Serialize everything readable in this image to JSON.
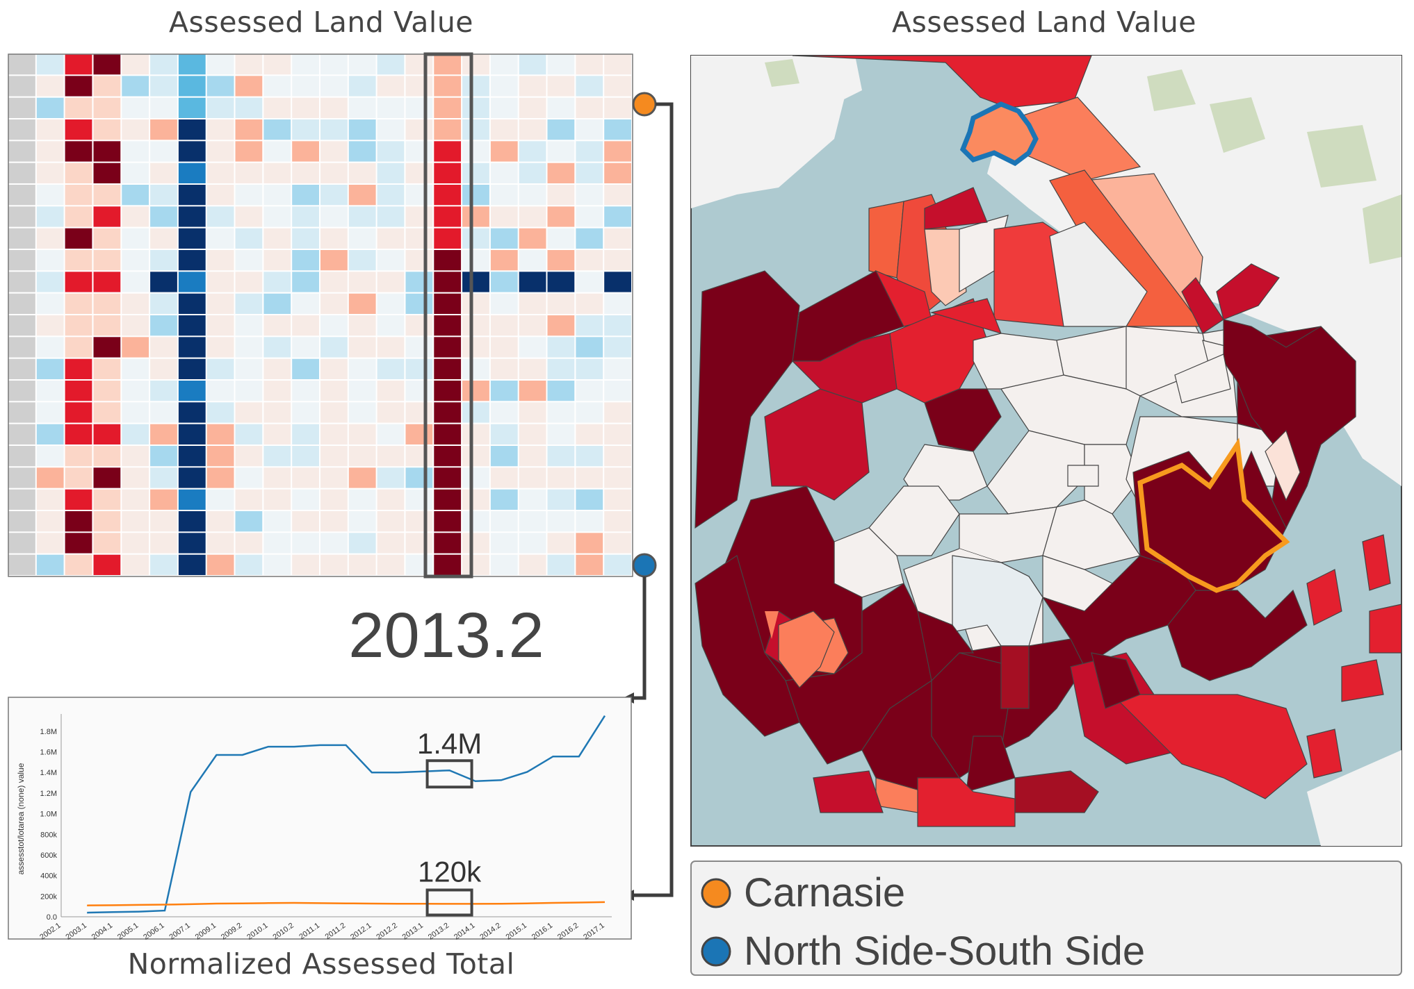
{
  "titles": {
    "heatmap": "Assessed Land Value",
    "map": "Assessed Land Value",
    "line_chart": "Normalized Assessed Total"
  },
  "selected_period": "2013.2",
  "annotations": {
    "north_value": "1.4M",
    "carnasie_value": "120k"
  },
  "legend": {
    "items": [
      {
        "label": "Carnasie",
        "color": "#f58a1f"
      },
      {
        "label": "North Side-South Side",
        "color": "#1b75b5"
      }
    ]
  },
  "colors": {
    "connector": "#3d3d3d",
    "highlight_box": "#555555",
    "north_line": "#1f78b4",
    "carnasie_line": "#ff7f0e",
    "water": "#aecad0",
    "land": "#f2f2f2",
    "park": "#cfdcbf"
  },
  "chart_data": [
    {
      "type": "heatmap",
      "title": "Assessed Land Value",
      "rows": 24,
      "columns": 22,
      "highlighted_column_index": 15,
      "color_scale": "diverging blue-white-red"
    },
    {
      "type": "line",
      "title": "Normalized Assessed Total",
      "ylabel": "assesstot/lotarea (none) value",
      "xlabel": "",
      "x": [
        "2002.1",
        "2003.1",
        "2004.1",
        "2005.1",
        "2006.1",
        "2007.1",
        "2009.1",
        "2009.2",
        "2010.1",
        "2010.2",
        "2011.1",
        "2011.2",
        "2012.1",
        "2012.2",
        "2013.1",
        "2013.2",
        "2014.1",
        "2014.2",
        "2015.1",
        "2016.1",
        "2016.2",
        "2017.1"
      ],
      "y_ticks": [
        "0.0",
        "200k",
        "400k",
        "600k",
        "800k",
        "1.0M",
        "1.2M",
        "1.4M",
        "1.6M",
        "1.8M"
      ],
      "ylim": [
        0,
        1900000
      ],
      "grid": false,
      "series": [
        {
          "name": "North Side-South Side",
          "color": "#1f78b4",
          "values": [
            null,
            40000,
            45000,
            50000,
            60000,
            1210000,
            1570000,
            1570000,
            1650000,
            1650000,
            1665000,
            1665000,
            1400000,
            1400000,
            1410000,
            1420000,
            1315000,
            1325000,
            1405000,
            1555000,
            1555000,
            1950000
          ]
        },
        {
          "name": "Carnasie",
          "color": "#ff7f0e",
          "values": [
            null,
            110000,
            112000,
            115000,
            118000,
            122000,
            128000,
            130000,
            133000,
            135000,
            132000,
            130000,
            128000,
            127000,
            126000,
            125000,
            125000,
            127000,
            130000,
            135000,
            138000,
            142000
          ]
        }
      ]
    }
  ]
}
